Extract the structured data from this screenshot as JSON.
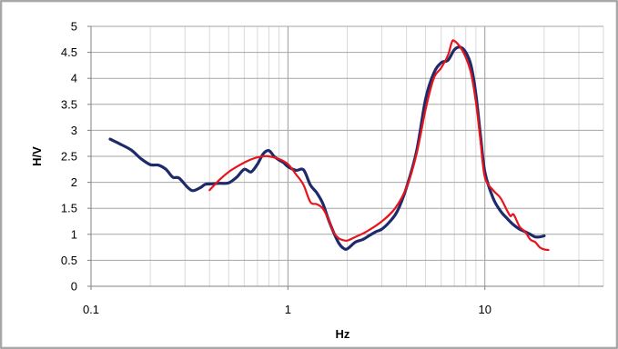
{
  "chart_data": {
    "type": "line",
    "title": "",
    "xlabel": "Hz",
    "ylabel": "H/V",
    "xscale": "log",
    "xlim": [
      0.1,
      40
    ],
    "ylim": [
      0,
      5
    ],
    "grid": true,
    "legend": "none",
    "x_tick_labels": [
      "0.1",
      "1",
      "10"
    ],
    "x_tick_values": [
      0.1,
      1,
      10
    ],
    "y_tick_labels": [
      "0",
      "0.5",
      "1",
      "1.5",
      "2",
      "2.5",
      "3",
      "3.5",
      "4",
      "4.5",
      "5"
    ],
    "y_tick_values": [
      0,
      0.5,
      1,
      1.5,
      2,
      2.5,
      3,
      3.5,
      4,
      4.5,
      5
    ],
    "series": [
      {
        "color": "#1f2a6b",
        "points": [
          [
            0.125,
            2.83
          ],
          [
            0.14,
            2.74
          ],
          [
            0.16,
            2.62
          ],
          [
            0.18,
            2.45
          ],
          [
            0.2,
            2.34
          ],
          [
            0.22,
            2.33
          ],
          [
            0.24,
            2.25
          ],
          [
            0.26,
            2.1
          ],
          [
            0.28,
            2.08
          ],
          [
            0.31,
            1.9
          ],
          [
            0.33,
            1.84
          ],
          [
            0.36,
            1.9
          ],
          [
            0.38,
            1.96
          ],
          [
            0.41,
            1.97
          ],
          [
            0.45,
            1.98
          ],
          [
            0.5,
            1.99
          ],
          [
            0.55,
            2.1
          ],
          [
            0.6,
            2.25
          ],
          [
            0.65,
            2.2
          ],
          [
            0.7,
            2.35
          ],
          [
            0.75,
            2.55
          ],
          [
            0.8,
            2.61
          ],
          [
            0.85,
            2.5
          ],
          [
            0.9,
            2.43
          ],
          [
            0.95,
            2.38
          ],
          [
            1.0,
            2.3
          ],
          [
            1.1,
            2.23
          ],
          [
            1.2,
            2.24
          ],
          [
            1.3,
            1.95
          ],
          [
            1.4,
            1.8
          ],
          [
            1.5,
            1.6
          ],
          [
            1.6,
            1.3
          ],
          [
            1.7,
            1.05
          ],
          [
            1.8,
            0.85
          ],
          [
            1.9,
            0.74
          ],
          [
            2.0,
            0.72
          ],
          [
            2.2,
            0.85
          ],
          [
            2.4,
            0.9
          ],
          [
            2.6,
            0.98
          ],
          [
            2.8,
            1.05
          ],
          [
            3.0,
            1.1
          ],
          [
            3.3,
            1.25
          ],
          [
            3.6,
            1.45
          ],
          [
            4.0,
            1.9
          ],
          [
            4.5,
            2.6
          ],
          [
            5.0,
            3.6
          ],
          [
            5.5,
            4.1
          ],
          [
            6.0,
            4.3
          ],
          [
            6.5,
            4.35
          ],
          [
            7.0,
            4.55
          ],
          [
            7.5,
            4.6
          ],
          [
            8.0,
            4.5
          ],
          [
            8.5,
            4.25
          ],
          [
            9.0,
            3.7
          ],
          [
            9.5,
            2.9
          ],
          [
            10.0,
            2.2
          ],
          [
            11.0,
            1.7
          ],
          [
            12.0,
            1.45
          ],
          [
            13.0,
            1.3
          ],
          [
            14.0,
            1.18
          ],
          [
            15.0,
            1.1
          ],
          [
            16.0,
            1.05
          ],
          [
            17.0,
            1.0
          ],
          [
            18.0,
            0.95
          ],
          [
            19.0,
            0.95
          ],
          [
            20.0,
            0.97
          ]
        ]
      },
      {
        "color": "#e8141c",
        "points": [
          [
            0.4,
            1.85
          ],
          [
            0.45,
            2.05
          ],
          [
            0.5,
            2.2
          ],
          [
            0.55,
            2.3
          ],
          [
            0.6,
            2.38
          ],
          [
            0.65,
            2.44
          ],
          [
            0.7,
            2.48
          ],
          [
            0.75,
            2.5
          ],
          [
            0.8,
            2.5
          ],
          [
            0.9,
            2.45
          ],
          [
            1.0,
            2.35
          ],
          [
            1.1,
            2.15
          ],
          [
            1.2,
            1.95
          ],
          [
            1.3,
            1.62
          ],
          [
            1.4,
            1.58
          ],
          [
            1.5,
            1.5
          ],
          [
            1.6,
            1.3
          ],
          [
            1.7,
            1.05
          ],
          [
            1.8,
            0.93
          ],
          [
            1.9,
            0.89
          ],
          [
            2.0,
            0.88
          ],
          [
            2.2,
            0.95
          ],
          [
            2.5,
            1.05
          ],
          [
            3.0,
            1.25
          ],
          [
            3.5,
            1.5
          ],
          [
            4.0,
            1.9
          ],
          [
            4.5,
            2.55
          ],
          [
            5.0,
            3.4
          ],
          [
            5.5,
            4.0
          ],
          [
            6.0,
            4.2
          ],
          [
            6.5,
            4.45
          ],
          [
            6.8,
            4.7
          ],
          [
            7.0,
            4.72
          ],
          [
            7.5,
            4.6
          ],
          [
            8.0,
            4.4
          ],
          [
            8.5,
            4.1
          ],
          [
            9.0,
            3.55
          ],
          [
            9.5,
            2.8
          ],
          [
            10.0,
            2.1
          ],
          [
            11.0,
            1.85
          ],
          [
            12.0,
            1.7
          ],
          [
            13.0,
            1.45
          ],
          [
            13.5,
            1.35
          ],
          [
            14.0,
            1.38
          ],
          [
            15.0,
            1.15
          ],
          [
            16.0,
            1.05
          ],
          [
            17.0,
            0.9
          ],
          [
            18.0,
            0.85
          ],
          [
            19.0,
            0.75
          ],
          [
            20.0,
            0.71
          ],
          [
            21.0,
            0.7
          ]
        ]
      }
    ]
  }
}
